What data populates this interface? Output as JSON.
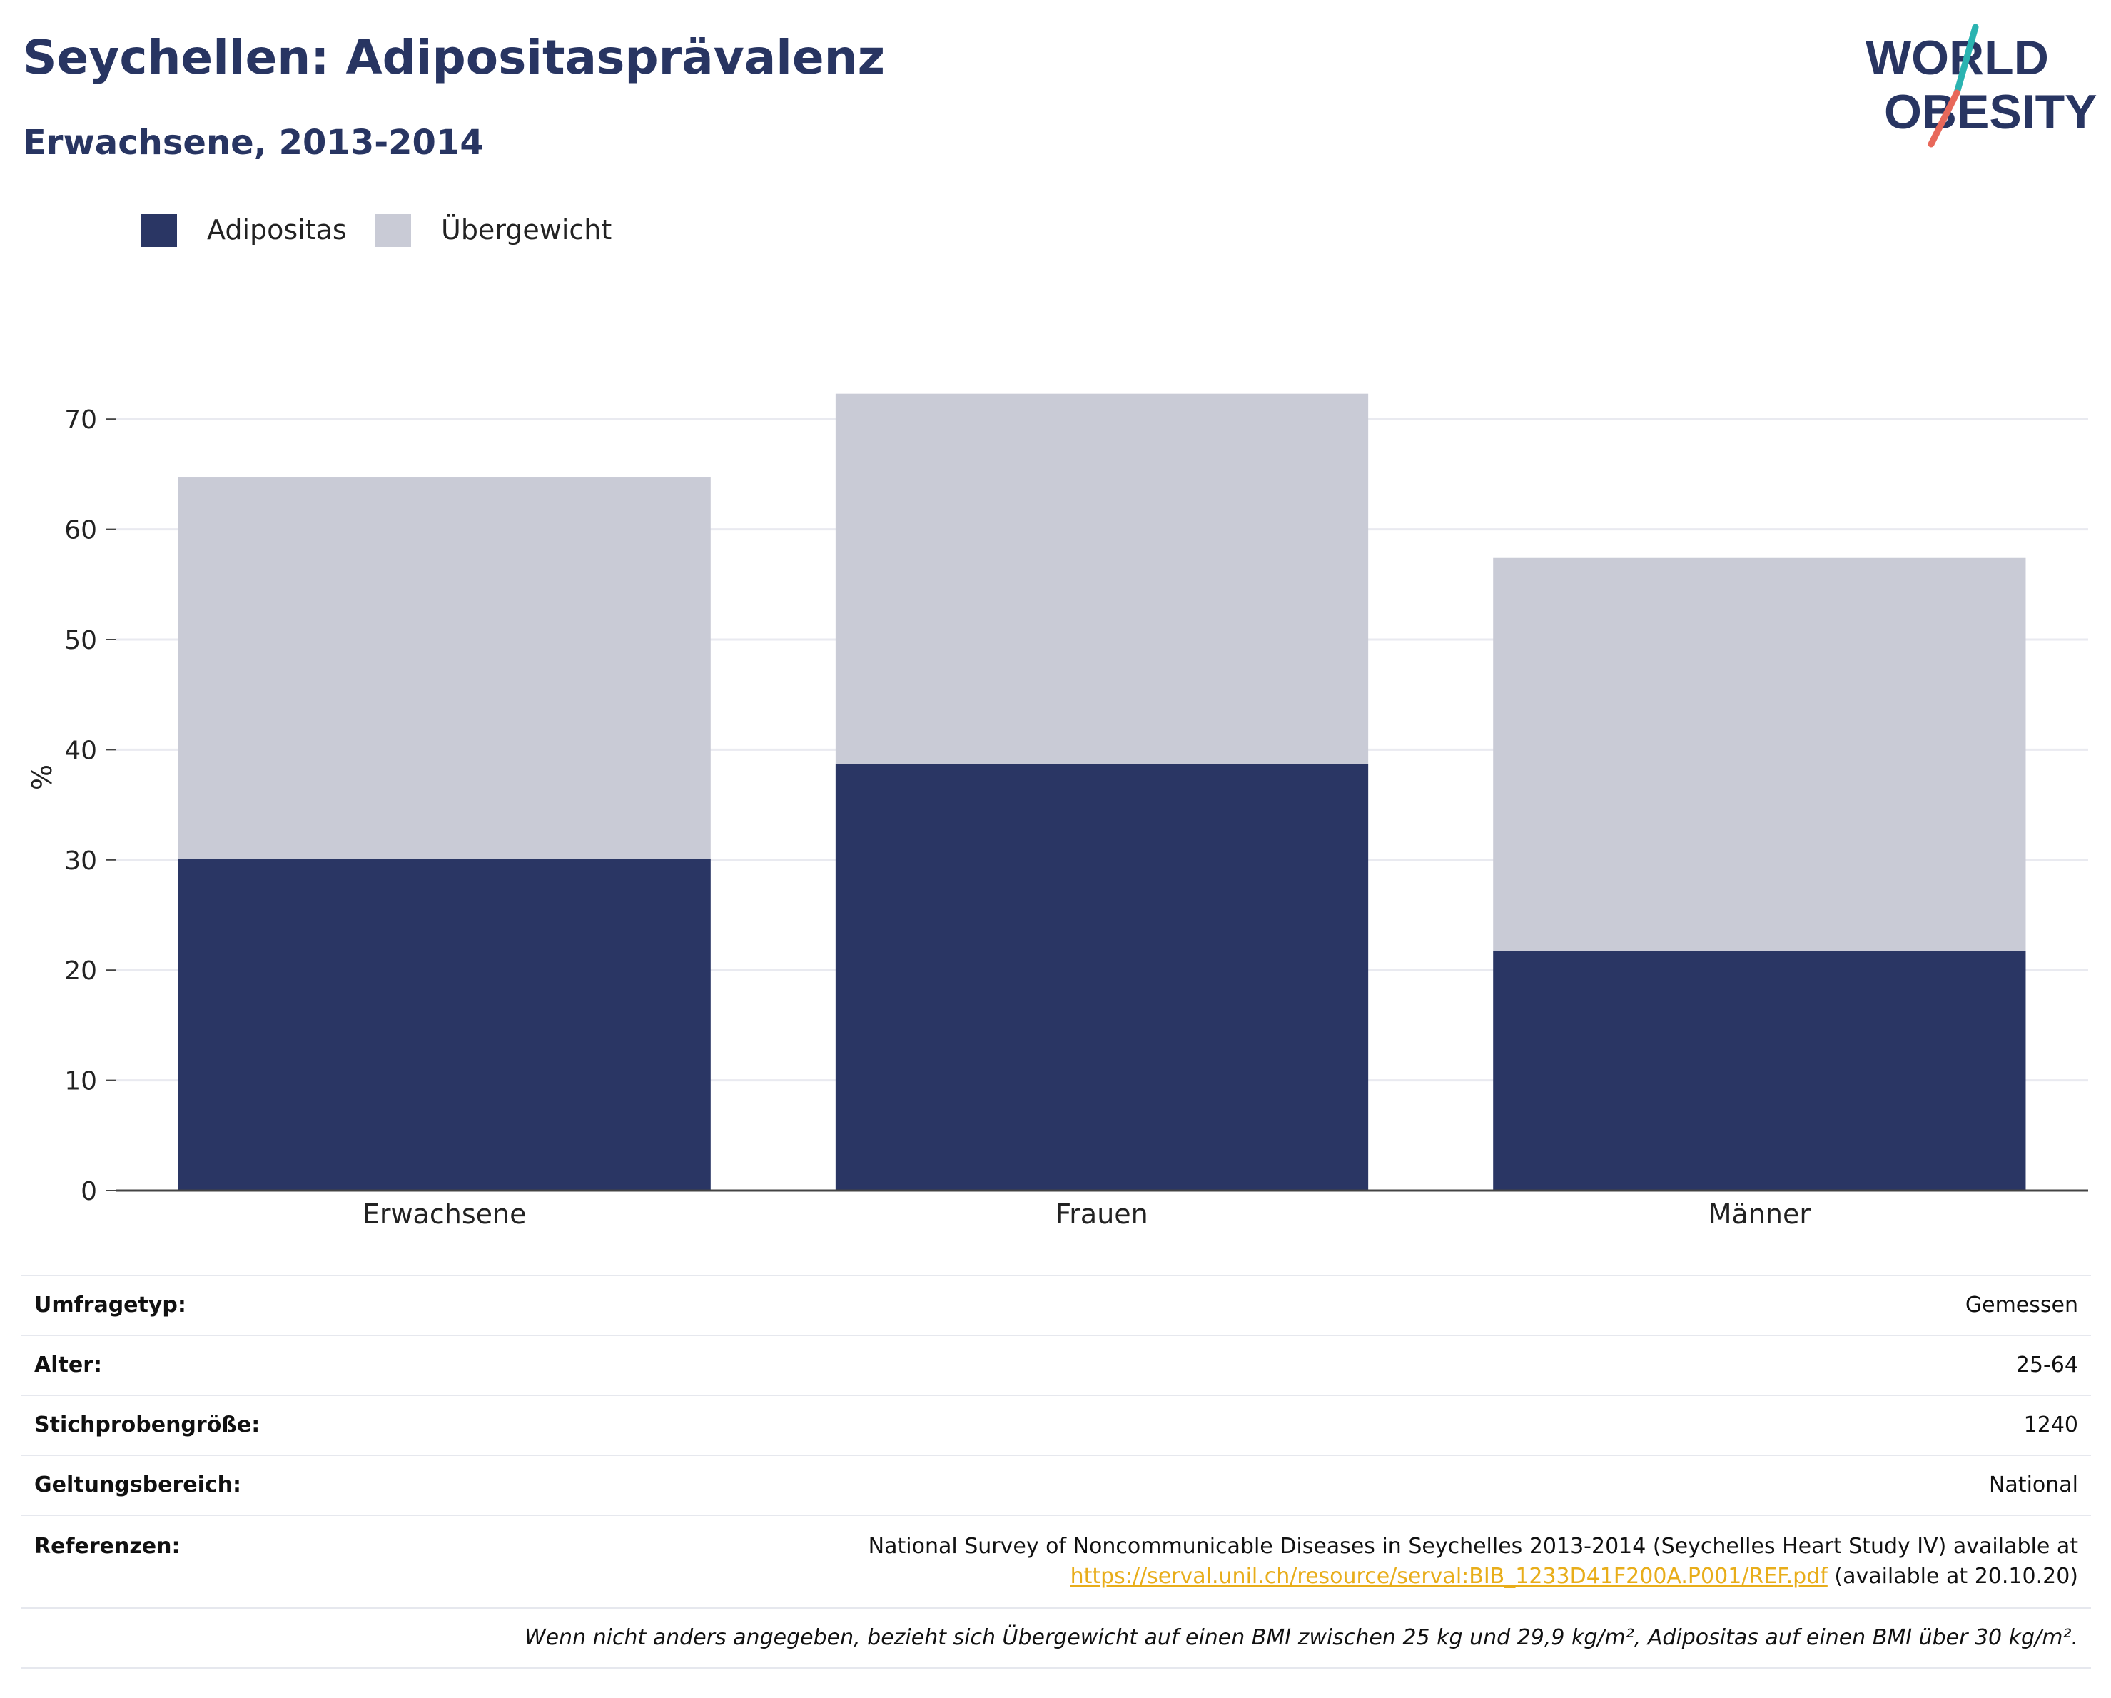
{
  "header": {
    "title": "Seychellen: Adipositasprävalenz",
    "subtitle": "Erwachsene, 2013-2014"
  },
  "logo": {
    "line1": "WORLD",
    "line2": "OBESITY",
    "colors": {
      "text": "#283562",
      "teal": "#2ab3b1",
      "coral": "#e8685a"
    }
  },
  "colors": {
    "adipositas": "#2a3664",
    "uebergewicht": "#c9cbd6",
    "grid": "#e9eaf0",
    "axis": "#444444"
  },
  "chart_data": {
    "type": "bar",
    "stacked": true,
    "categories": [
      "Erwachsene",
      "Frauen",
      "Männer"
    ],
    "series": [
      {
        "name": "Adipositas",
        "values": [
          30.1,
          38.7,
          21.7
        ]
      },
      {
        "name": "Übergewicht",
        "values": [
          34.6,
          33.6,
          35.7
        ]
      }
    ],
    "ylabel": "%",
    "xlabel": "",
    "ylim": [
      0,
      75
    ],
    "yticks": [
      0,
      10,
      20,
      30,
      40,
      50,
      60,
      70
    ],
    "grid": true,
    "legend": "top-left"
  },
  "info": {
    "survey_type": {
      "label": "Umfragetyp:",
      "value": "Gemessen"
    },
    "age": {
      "label": "Alter:",
      "value": "25-64"
    },
    "sample_size": {
      "label": "Stichprobengröße:",
      "value": "1240"
    },
    "scope": {
      "label": "Geltungsbereich:",
      "value": "National"
    },
    "references": {
      "label": "Referenzen:",
      "text": "National Survey of Noncommunicable Diseases in Seychelles 2013-2014 (Seychelles Heart Study IV) available at",
      "link": "https://serval.unil.ch/resource/serval:BIB_1233D41F200A.P001/REF.pdf",
      "suffix": " (available at 20.10.20)"
    },
    "footnote": "Wenn nicht anders angegeben, bezieht sich Übergewicht auf einen BMI zwischen 25 kg und 29,9 kg/m², Adipositas auf einen BMI über 30 kg/m²."
  }
}
